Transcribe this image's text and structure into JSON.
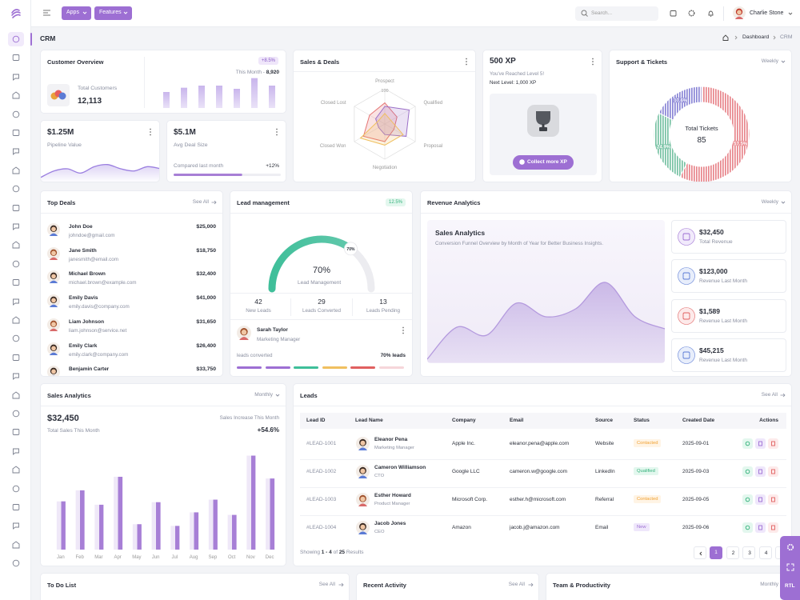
{
  "topbar": {
    "apps": "Apps",
    "features": "Features",
    "search": "Search...",
    "user": "Charlie Stone"
  },
  "breadcrumb": {
    "title": "CRM",
    "trail": [
      "Dashboard",
      "CRM"
    ]
  },
  "customer_overview": {
    "title": "Customer Overview",
    "badge": "+8.5%",
    "period": "This Month -",
    "period_value": "8,920",
    "label": "Total Customers",
    "value": "12,113",
    "chart": {
      "type": "bar",
      "values": [
        15,
        19,
        21,
        21,
        18,
        28,
        21
      ],
      "ylim": [
        0,
        30
      ],
      "color": "#dccdf1"
    }
  },
  "pipeline": {
    "value": "$1.25M",
    "label": "Pipeline Value",
    "chart": {
      "type": "area",
      "values": [
        2,
        5,
        6,
        4,
        7,
        8,
        6,
        5,
        7,
        6
      ],
      "ylim": [
        0,
        12
      ],
      "color": "#9b7fe0"
    }
  },
  "deal_size": {
    "value": "$5.1M",
    "label": "Avg Deal Size",
    "compare": "Compared last month",
    "change": "+12%",
    "progress": {
      "value": 64,
      "xlim": [
        0,
        100
      ],
      "color": "#a77fd6"
    }
  },
  "sales_deals": {
    "title": "Sales & Deals",
    "chart": {
      "type": "radar",
      "axes": [
        "Prospect",
        "Qualified",
        "Proposal",
        "Negotiation",
        "Closed Won",
        "Closed Lost"
      ],
      "rlim": [
        0,
        100
      ],
      "rticks": [
        100
      ],
      "series": [
        {
          "color": "#e57373",
          "values": [
            60,
            40,
            30,
            50,
            70,
            50
          ]
        },
        {
          "color": "#9b6fc7",
          "values": [
            50,
            80,
            70,
            30,
            20,
            30
          ]
        },
        {
          "color": "#f0c060",
          "values": [
            30,
            20,
            60,
            60,
            80,
            20
          ]
        }
      ]
    }
  },
  "xp": {
    "title": "500 XP",
    "subtitle": "You've Reached Level 5!",
    "next": "Next Level: 1,000 XP",
    "button": "Collect more XP"
  },
  "support": {
    "title": "Support & Tickets",
    "period": "Weekly",
    "center_label": "Total Tickets",
    "center_value": "85",
    "chart": {
      "type": "pie",
      "values": [
        57.5,
        24.9,
        17.6
      ],
      "value_labels": [
        "57.5%",
        "24.9%",
        "17.6%"
      ],
      "colors": [
        "#e8868c",
        "#78c2a4",
        "#8a86d6"
      ]
    }
  },
  "top_deals": {
    "title": "Top Deals",
    "see_all": "See All",
    "rows": [
      {
        "name": "John Doe",
        "email": "johndoe@gmail.com",
        "amount": "$25,000"
      },
      {
        "name": "Jane Smith",
        "email": "janesmith@email.com",
        "amount": "$18,750"
      },
      {
        "name": "Michael Brown",
        "email": "michael.brown@example.com",
        "amount": "$32,400"
      },
      {
        "name": "Emily Davis",
        "email": "emily.davis@company.com",
        "amount": "$41,000"
      },
      {
        "name": "Liam Johnson",
        "email": "liam.johnson@service.net",
        "amount": "$31,650"
      },
      {
        "name": "Emily Clark",
        "email": "emily.clark@company.com",
        "amount": "$26,400"
      },
      {
        "name": "Benjamin Carter",
        "amount": "$33,750"
      }
    ]
  },
  "lead_management": {
    "title": "Lead management",
    "badge": "12.5%",
    "gauge": {
      "value": 70,
      "xlim": [
        0,
        100
      ],
      "label": "70%",
      "color": "#3fbf9a"
    },
    "center_value": "70%",
    "center_label": "Lead Management",
    "stats": [
      {
        "value": "42",
        "label": "New Leads"
      },
      {
        "value": "29",
        "label": "Leads Converted"
      },
      {
        "value": "13",
        "label": "Leads Pending"
      }
    ],
    "person": {
      "name": "Sarah Taylor",
      "role": "Marketing Manager"
    },
    "footer_label": "leads converted",
    "footer_value": "70% leads"
  },
  "revenue": {
    "title": "Revenue Analytics",
    "period": "Weekly",
    "panel_title": "Sales Analytics",
    "panel_subtitle": "Conversion Funnel Overview by Month of Year for Better Business Insights.",
    "chart": {
      "type": "area",
      "values": [
        4,
        44,
        34,
        74,
        57,
        67,
        100,
        57,
        42
      ],
      "ylim": [
        0,
        110
      ],
      "color": "#b49ade"
    },
    "stats": [
      {
        "value": "$32,450",
        "label": "Total Revenue"
      },
      {
        "value": "$123,000",
        "label": "Revenue Last Month"
      },
      {
        "value": "$1,589",
        "label": "Revenue Last Month"
      },
      {
        "value": "$45,215",
        "label": "Revenue Last Month"
      }
    ]
  },
  "sales_analytics": {
    "title": "Sales Analytics",
    "period": "Monthly",
    "value": "$32,450",
    "value_label": "Total Sales This Month",
    "increase_label": "Sales Increase This Month",
    "increase": "+54.6%",
    "chart": {
      "type": "bar",
      "categories": [
        "Jan",
        "Feb",
        "Mar",
        "Apr",
        "May",
        "Jun",
        "Jul",
        "Aug",
        "Sep",
        "Oct",
        "Nov",
        "Dec"
      ],
      "values": [
        57,
        70,
        53,
        86,
        30,
        56,
        28,
        44,
        59,
        41,
        111,
        84
      ],
      "ylim": [
        0,
        120
      ],
      "color": "#a77fd6"
    }
  },
  "leads": {
    "title": "Leads",
    "see_all": "See All",
    "columns": [
      "Lead ID",
      "Lead Name",
      "Company",
      "Email",
      "Source",
      "Status",
      "Created Date",
      "Actions"
    ],
    "rows": [
      {
        "id": "#LEAD-1001",
        "name": "Eleanor Pena",
        "role": "Marketing Manager",
        "company": "Apple Inc.",
        "email": "eleanor.pena@apple.com",
        "source": "Website",
        "status": "Contacted",
        "date": "2025-09-01"
      },
      {
        "id": "#LEAD-1002",
        "name": "Cameron Williamson",
        "role": "CTO",
        "company": "Google LLC",
        "email": "cameron.w@google.com",
        "source": "LinkedIn",
        "status": "Qualified",
        "date": "2025-09-03"
      },
      {
        "id": "#LEAD-1003",
        "name": "Esther Howard",
        "role": "Product Manager",
        "company": "Microsoft Corp.",
        "email": "esther.h@microsoft.com",
        "source": "Referral",
        "status": "Contacted",
        "date": "2025-09-05"
      },
      {
        "id": "#LEAD-1004",
        "name": "Jacob Jones",
        "role": "CEO",
        "company": "Amazon",
        "email": "jacob.j@amazon.com",
        "source": "Email",
        "status": "New",
        "date": "2025-09-06"
      }
    ],
    "footer": [
      "Showing",
      "1 - 4",
      "of",
      "25",
      "Results"
    ],
    "pages": [
      1,
      2,
      3,
      4
    ]
  },
  "bottom": {
    "todo": "To Do List",
    "todo_see_all": "See All",
    "activity": "Recent Activity",
    "activity_see_all": "See All",
    "team": "Team & Productivity",
    "team_period": "Monthly"
  },
  "settings_panel": {
    "rtl": "RTL"
  }
}
